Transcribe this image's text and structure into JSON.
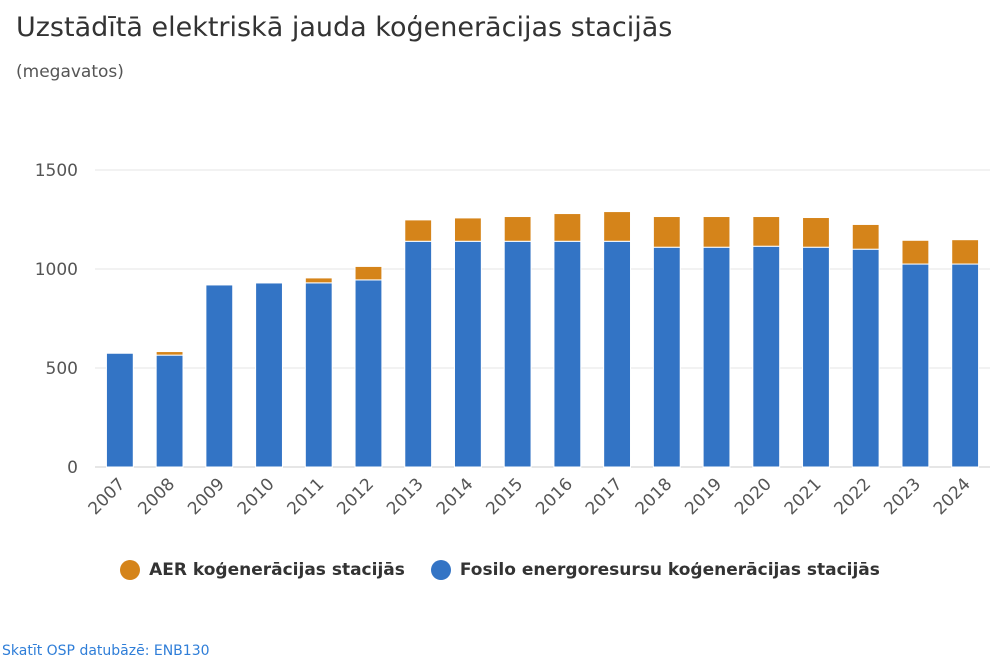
{
  "header": {
    "title": "Uzstādītā elektriskā jauda koģenerācijas stacijās",
    "subtitle": "(megavatos)"
  },
  "footer": {
    "source_link": "Skatīt OSP datubāzē: ENB130"
  },
  "chart_data": {
    "type": "bar",
    "stacked": true,
    "title": "Uzstādītā elektriskā jauda koģenerācijas stacijās",
    "subtitle": "(megavatos)",
    "categories": [
      "2007",
      "2008",
      "2009",
      "2010",
      "2011",
      "2012",
      "2013",
      "2014",
      "2015",
      "2016",
      "2017",
      "2018",
      "2019",
      "2020",
      "2021",
      "2022",
      "2023",
      "2024"
    ],
    "series": [
      {
        "name": "Fosilo energoresursu koģenerācijas stacijās",
        "color": "#3374c5",
        "values": [
          575,
          565,
          920,
          930,
          930,
          945,
          1140,
          1140,
          1140,
          1140,
          1140,
          1110,
          1110,
          1115,
          1110,
          1100,
          1025,
          1025
        ]
      },
      {
        "name": "AER koģenerācijas stacijās",
        "color": "#d5841a",
        "values": [
          5,
          18,
          2,
          2,
          25,
          68,
          108,
          118,
          125,
          140,
          150,
          155,
          155,
          150,
          150,
          125,
          120,
          123
        ]
      }
    ],
    "legend_order": [
      1,
      0
    ],
    "yticks": [
      0,
      500,
      1000,
      1500
    ],
    "ylim": [
      0,
      1500
    ],
    "grid": true,
    "legend_position": "bottom-center"
  }
}
